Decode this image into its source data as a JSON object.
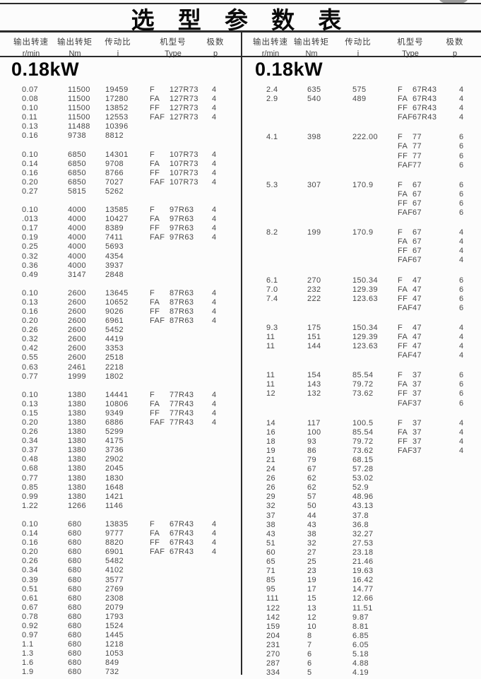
{
  "title": "选 型 参 数 表",
  "colors": {
    "ink": "#474747",
    "line": "#2b2b2b",
    "title_ink": "#0a0a0a",
    "corner_mark": "#9a9a9a"
  },
  "columns": [
    {
      "label_zh": "输出转速",
      "unit": "r/min"
    },
    {
      "label_zh": "输出转矩",
      "unit": "Nm"
    },
    {
      "label_zh": "传动比",
      "unit": "i"
    },
    {
      "label_zh": "机型号",
      "unit": "Type"
    },
    {
      "label_zh": "极数",
      "unit": "p"
    }
  ],
  "left_panel": {
    "power_rating": "0.18kW",
    "sections": [
      {
        "rows": [
          [
            "0.07",
            "11500",
            "19459",
            "F",
            "127R73",
            "4"
          ],
          [
            "0.08",
            "11500",
            "17280",
            "FA",
            "127R73",
            "4"
          ],
          [
            "0.10",
            "11500",
            "13852",
            "FF",
            "127R73",
            "4"
          ],
          [
            "0.11",
            "11500",
            "12553",
            "FAF",
            "127R73",
            "4"
          ],
          [
            "0.13",
            "11488",
            "10396",
            "",
            "",
            ""
          ],
          [
            "0.16",
            "9738",
            "8812",
            "",
            "",
            ""
          ]
        ]
      },
      {
        "rows": [
          [
            "0.10",
            "6850",
            "14301",
            "F",
            "107R73",
            "4"
          ],
          [
            "0.14",
            "6850",
            "9708",
            "FA",
            "107R73",
            "4"
          ],
          [
            "0.16",
            "6850",
            "8766",
            "FF",
            "107R73",
            "4"
          ],
          [
            "0.20",
            "6850",
            "7027",
            "FAF",
            "107R73",
            "4"
          ],
          [
            "0.27",
            "5815",
            "5262",
            "",
            "",
            ""
          ]
        ]
      },
      {
        "rows": [
          [
            "0.10",
            "4000",
            "13585",
            "F",
            "97R63",
            "4"
          ],
          [
            ".013",
            "4000",
            "10427",
            "FA",
            "97R63",
            "4"
          ],
          [
            "0.17",
            "4000",
            "8389",
            "FF",
            "97R63",
            "4"
          ],
          [
            "0.19",
            "4000",
            "7411",
            "FAF",
            "97R63",
            "4"
          ],
          [
            "0.25",
            "4000",
            "5693",
            "",
            "",
            ""
          ],
          [
            "0.32",
            "4000",
            "4354",
            "",
            "",
            ""
          ],
          [
            "0.36",
            "4000",
            "3937",
            "",
            "",
            ""
          ],
          [
            "0.49",
            "3147",
            "2848",
            "",
            "",
            ""
          ]
        ]
      },
      {
        "rows": [
          [
            "0.10",
            "2600",
            "13645",
            "F",
            "87R63",
            "4"
          ],
          [
            "0.13",
            "2600",
            "10652",
            "FA",
            "87R63",
            "4"
          ],
          [
            "0.16",
            "2600",
            "9026",
            "FF",
            "87R63",
            "4"
          ],
          [
            "0.20",
            "2600",
            "6961",
            "FAF",
            "87R63",
            "4"
          ],
          [
            "0.26",
            "2600",
            "5452",
            "",
            "",
            ""
          ],
          [
            "0.32",
            "2600",
            "4419",
            "",
            "",
            ""
          ],
          [
            "0.42",
            "2600",
            "3353",
            "",
            "",
            ""
          ],
          [
            "0.55",
            "2600",
            "2518",
            "",
            "",
            ""
          ],
          [
            "0.63",
            "2461",
            "2218",
            "",
            "",
            ""
          ],
          [
            "0.77",
            "1999",
            "1802",
            "",
            "",
            ""
          ]
        ]
      },
      {
        "rows": [
          [
            "0.10",
            "1380",
            "14441",
            "F",
            "77R43",
            "4"
          ],
          [
            "0.13",
            "1380",
            "10806",
            "FA",
            "77R43",
            "4"
          ],
          [
            "0.15",
            "1380",
            "9349",
            "FF",
            "77R43",
            "4"
          ],
          [
            "0.20",
            "1380",
            "6886",
            "FAF",
            "77R43",
            "4"
          ],
          [
            "0.26",
            "1380",
            "5299",
            "",
            "",
            ""
          ],
          [
            "0.34",
            "1380",
            "4175",
            "",
            "",
            ""
          ],
          [
            "0.37",
            "1380",
            "3736",
            "",
            "",
            ""
          ],
          [
            "0.48",
            "1380",
            "2902",
            "",
            "",
            ""
          ],
          [
            "0.68",
            "1380",
            "2045",
            "",
            "",
            ""
          ],
          [
            "0.77",
            "1380",
            "1830",
            "",
            "",
            ""
          ],
          [
            "0.85",
            "1380",
            "1648",
            "",
            "",
            ""
          ],
          [
            "0.99",
            "1380",
            "1421",
            "",
            "",
            ""
          ],
          [
            "1.22",
            "1266",
            "1146",
            "",
            "",
            ""
          ]
        ]
      },
      {
        "rows": [
          [
            "0.10",
            "680",
            "13835",
            "F",
            "67R43",
            "4"
          ],
          [
            "0.14",
            "680",
            "9777",
            "FA",
            "67R43",
            "4"
          ],
          [
            "0.16",
            "680",
            "8820",
            "FF",
            "67R43",
            "4"
          ],
          [
            "0.20",
            "680",
            "6901",
            "FAF",
            "67R43",
            "4"
          ],
          [
            "0.26",
            "680",
            "5482",
            "",
            "",
            ""
          ],
          [
            "0.34",
            "680",
            "4102",
            "",
            "",
            ""
          ],
          [
            "0.39",
            "680",
            "3577",
            "",
            "",
            ""
          ],
          [
            "0.51",
            "680",
            "2769",
            "",
            "",
            ""
          ],
          [
            "0.61",
            "680",
            "2308",
            "",
            "",
            ""
          ],
          [
            "0.67",
            "680",
            "2079",
            "",
            "",
            ""
          ],
          [
            "0.78",
            "680",
            "1793",
            "",
            "",
            ""
          ],
          [
            "0.92",
            "680",
            "1524",
            "",
            "",
            ""
          ],
          [
            "0.97",
            "680",
            "1445",
            "",
            "",
            ""
          ],
          [
            "1.1",
            "680",
            "1218",
            "",
            "",
            ""
          ],
          [
            "1.3",
            "680",
            "1053",
            "",
            "",
            ""
          ],
          [
            "1.6",
            "680",
            "849",
            "",
            "",
            ""
          ],
          [
            "1.9",
            "680",
            "732",
            "",
            "",
            ""
          ]
        ]
      }
    ]
  },
  "right_panel": {
    "power_rating": "0.18kW",
    "sections": [
      {
        "rows": [
          [
            "2.4",
            "635",
            "575",
            "F",
            "67R43",
            "4"
          ],
          [
            "2.9",
            "540",
            "489",
            "FA",
            "67R43",
            "4"
          ],
          [
            "",
            "",
            "",
            "FF",
            "67R43",
            "4"
          ],
          [
            "",
            "",
            "",
            "FAF",
            "67R43",
            "4"
          ]
        ]
      },
      {
        "rows": [
          [
            "4.1",
            "398",
            "222.00",
            "F",
            "77",
            "6"
          ],
          [
            "",
            "",
            "",
            "FA",
            "77",
            "6"
          ],
          [
            "",
            "",
            "",
            "FF",
            "77",
            "6"
          ],
          [
            "",
            "",
            "",
            "FAF",
            "77",
            "6"
          ]
        ]
      },
      {
        "rows": [
          [
            "5.3",
            "307",
            "170.9",
            "F",
            "67",
            "6"
          ],
          [
            "",
            "",
            "",
            "FA",
            "67",
            "6"
          ],
          [
            "",
            "",
            "",
            "FF",
            "67",
            "6"
          ],
          [
            "",
            "",
            "",
            "FAF",
            "67",
            "6"
          ]
        ]
      },
      {
        "rows": [
          [
            "8.2",
            "199",
            "170.9",
            "F",
            "67",
            "4"
          ],
          [
            "",
            "",
            "",
            "FA",
            "67",
            "4"
          ],
          [
            "",
            "",
            "",
            "FF",
            "67",
            "4"
          ],
          [
            "",
            "",
            "",
            "FAF",
            "67",
            "4"
          ]
        ]
      },
      {
        "rows": [
          [
            "6.1",
            "270",
            "150.34",
            "F",
            "47",
            "6"
          ],
          [
            "7.0",
            "232",
            "129.39",
            "FA",
            "47",
            "6"
          ],
          [
            "7.4",
            "222",
            "123.63",
            "FF",
            "47",
            "6"
          ],
          [
            "",
            "",
            "",
            "FAF",
            "47",
            "6"
          ]
        ]
      },
      {
        "rows": [
          [
            "9.3",
            "175",
            "150.34",
            "F",
            "47",
            "4"
          ],
          [
            "11",
            "151",
            "129.39",
            "FA",
            "47",
            "4"
          ],
          [
            "11",
            "144",
            "123.63",
            "FF",
            "47",
            "4"
          ],
          [
            "",
            "",
            "",
            "FAF",
            "47",
            "4"
          ]
        ]
      },
      {
        "rows": [
          [
            "11",
            "154",
            "85.54",
            "F",
            "37",
            "6"
          ],
          [
            "11",
            "143",
            "79.72",
            "FA",
            "37",
            "6"
          ],
          [
            "12",
            "132",
            "73.62",
            "FF",
            "37",
            "6"
          ],
          [
            "",
            "",
            "",
            "FAF",
            "37",
            "6"
          ]
        ]
      },
      {
        "rows": [
          [
            "14",
            "117",
            "100.5",
            "F",
            "37",
            "4"
          ],
          [
            "16",
            "100",
            "85.54",
            "FA",
            "37",
            "4"
          ],
          [
            "18",
            "93",
            "79.72",
            "FF",
            "37",
            "4"
          ],
          [
            "19",
            "86",
            "73.62",
            "FAF",
            "37",
            "4"
          ],
          [
            "21",
            "79",
            "68.15",
            "",
            "",
            ""
          ],
          [
            "24",
            "67",
            "57.28",
            "",
            "",
            ""
          ],
          [
            "26",
            "62",
            "53.02",
            "",
            "",
            ""
          ],
          [
            "26",
            "62",
            "52.9",
            "",
            "",
            ""
          ],
          [
            "29",
            "57",
            "48.96",
            "",
            "",
            ""
          ],
          [
            "32",
            "50",
            "43.13",
            "",
            "",
            ""
          ],
          [
            "37",
            "44",
            "37.8",
            "",
            "",
            ""
          ],
          [
            "38",
            "43",
            "36.8",
            "",
            "",
            ""
          ],
          [
            "43",
            "38",
            "32.27",
            "",
            "",
            ""
          ],
          [
            "51",
            "32",
            "27.53",
            "",
            "",
            ""
          ],
          [
            "60",
            "27",
            "23.18",
            "",
            "",
            ""
          ],
          [
            "65",
            "25",
            "21.46",
            "",
            "",
            ""
          ],
          [
            "71",
            "23",
            "19.63",
            "",
            "",
            ""
          ],
          [
            "85",
            "19",
            "16.42",
            "",
            "",
            ""
          ],
          [
            "95",
            "17",
            "14.77",
            "",
            "",
            ""
          ],
          [
            "111",
            "15",
            "12.66",
            "",
            "",
            ""
          ],
          [
            "122",
            "13",
            "11.51",
            "",
            "",
            ""
          ],
          [
            "142",
            "12",
            "9.87",
            "",
            "",
            ""
          ],
          [
            "159",
            "10",
            "8.81",
            "",
            "",
            ""
          ],
          [
            "204",
            "8",
            "6.85",
            "",
            "",
            ""
          ],
          [
            "231",
            "7",
            "6.05",
            "",
            "",
            ""
          ],
          [
            "270",
            "6",
            "5.18",
            "",
            "",
            ""
          ],
          [
            "287",
            "6",
            "4.88",
            "",
            "",
            ""
          ],
          [
            "334",
            "5",
            "4.19",
            "",
            "",
            ""
          ]
        ]
      }
    ]
  }
}
